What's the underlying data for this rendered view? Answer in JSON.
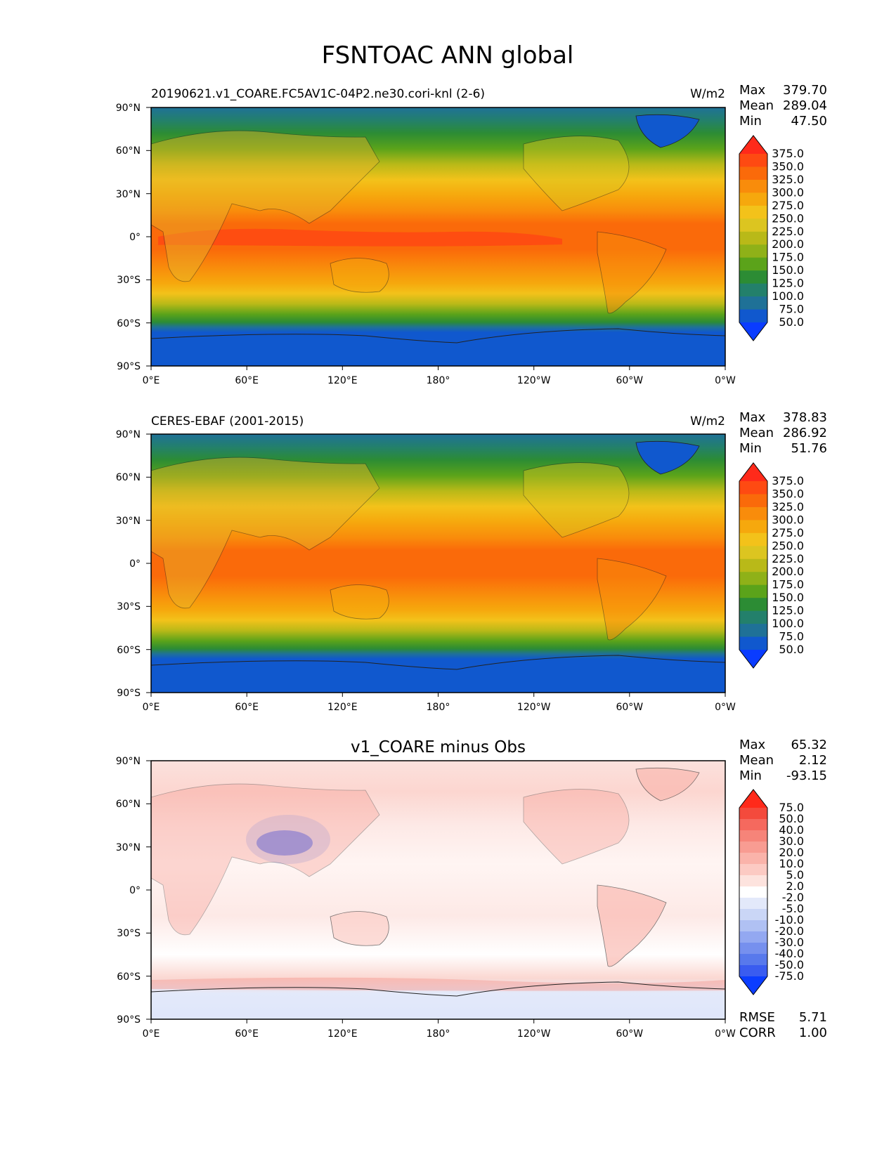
{
  "title": "FSNTOAC ANN global",
  "x_ticks": [
    "0°E",
    "60°E",
    "120°E",
    "180°",
    "120°W",
    "60°W",
    "0°W"
  ],
  "y_ticks": [
    "90°N",
    "60°N",
    "30°N",
    "0°",
    "30°S",
    "60°S",
    "90°S"
  ],
  "panels": [
    {
      "id": "test",
      "left_title": "20190621.v1_COARE.FC5AV1C-04P2.ne30.cori-knl (2-6)",
      "center_title": "",
      "units": "W/m2",
      "stats": {
        "labels": [
          "Max",
          "Mean",
          "Min"
        ],
        "values": [
          "379.70",
          "289.04",
          "47.50"
        ]
      },
      "colorbar": {
        "labels": [
          "375.0",
          "350.0",
          "325.0",
          "300.0",
          "275.0",
          "250.0",
          "225.0",
          "200.0",
          "175.0",
          "150.0",
          "125.0",
          "100.0",
          "75.0",
          "50.0"
        ],
        "colors": [
          "#ff2a1a",
          "#fe4a12",
          "#fa6a0a",
          "#f98c0b",
          "#f6a80d",
          "#f3c21a",
          "#dcc520",
          "#b9b918",
          "#8fb118",
          "#5ba31a",
          "#2c8c34",
          "#23806b",
          "#1f7197",
          "#1058ce",
          "#0a3cff"
        ]
      }
    },
    {
      "id": "ref",
      "left_title": "CERES-EBAF (2001-2015)",
      "center_title": "",
      "units": "W/m2",
      "stats": {
        "labels": [
          "Max",
          "Mean",
          "Min"
        ],
        "values": [
          "378.83",
          "286.92",
          "51.76"
        ]
      },
      "colorbar": {
        "labels": [
          "375.0",
          "350.0",
          "325.0",
          "300.0",
          "275.0",
          "250.0",
          "225.0",
          "200.0",
          "175.0",
          "150.0",
          "125.0",
          "100.0",
          "75.0",
          "50.0"
        ],
        "colors": [
          "#ff2a1a",
          "#fe4a12",
          "#fa6a0a",
          "#f98c0b",
          "#f6a80d",
          "#f3c21a",
          "#dcc520",
          "#b9b918",
          "#8fb118",
          "#5ba31a",
          "#2c8c34",
          "#23806b",
          "#1f7197",
          "#1058ce",
          "#0a3cff"
        ]
      }
    },
    {
      "id": "diff",
      "left_title": "",
      "center_title": "v1_COARE minus Obs",
      "units": "",
      "stats": {
        "labels": [
          "Max",
          "Mean",
          "Min"
        ],
        "values": [
          "65.32",
          "2.12",
          "-93.15"
        ]
      },
      "colorbar": {
        "labels": [
          "75.0",
          "50.0",
          "40.0",
          "30.0",
          "20.0",
          "10.0",
          "5.0",
          "2.0",
          "-2.0",
          "-5.0",
          "-10.0",
          "-20.0",
          "-30.0",
          "-40.0",
          "-50.0",
          "-75.0"
        ],
        "colors": [
          "#ff2a1a",
          "#f44a3c",
          "#f5695e",
          "#f68479",
          "#f89c92",
          "#fab3aa",
          "#fccac3",
          "#fde3de",
          "#ffffff",
          "#e3e9fa",
          "#cad6f6",
          "#b0c1f3",
          "#93a8f1",
          "#7690ee",
          "#5879ec",
          "#3a5cf0",
          "#0b3dff"
        ]
      },
      "extra": {
        "labels": [
          "RMSE",
          "CORR"
        ],
        "values": [
          "5.71",
          "1.00"
        ]
      }
    }
  ]
}
